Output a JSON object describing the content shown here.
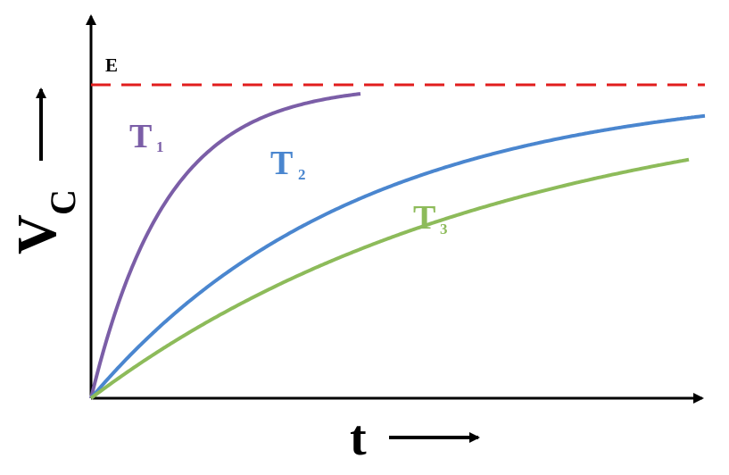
{
  "chart_data": {
    "type": "line",
    "title": "",
    "xlabel": "t",
    "ylabel": {
      "main": "V",
      "sub": "C"
    },
    "asymptote": {
      "label": "E",
      "color": "#e11d1d",
      "style": "dashed"
    },
    "series": [
      {
        "label": {
          "main": "T",
          "sub": "1"
        },
        "color": "#7b5ea7",
        "relative_time_constant": 1
      },
      {
        "label": {
          "main": "T",
          "sub": "2"
        },
        "color": "#4a86cf",
        "relative_time_constant": 3.5
      },
      {
        "label": {
          "main": "T",
          "sub": "3"
        },
        "color": "#8dbb5a",
        "relative_time_constant": 5.5
      }
    ],
    "axes": {
      "x": {
        "arrow": true
      },
      "y": {
        "arrow": true
      }
    },
    "grid": false
  },
  "colors": {
    "axis": "#000000"
  }
}
